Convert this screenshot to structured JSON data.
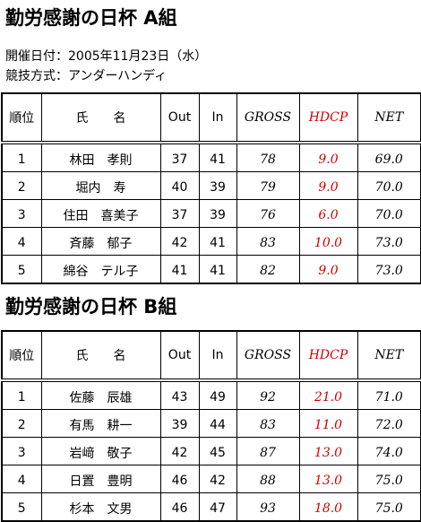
{
  "sections": [
    {
      "title": "勤労感謝の日杯 A組",
      "info": [
        "開催日付：2005年11月23日（水）",
        "競技方式：アンダーハンディ"
      ],
      "table": {
        "header": [
          "順位",
          "氏　　名",
          "Out",
          "In",
          "GROSS",
          "HDCP",
          "NET"
        ],
        "rows": [
          [
            "1",
            "林田　孝則",
            "37",
            "41",
            "78",
            "9.0",
            "69.0"
          ],
          [
            "2",
            "堀内　寿",
            "40",
            "39",
            "79",
            "9.0",
            "70.0"
          ],
          [
            "3",
            "住田　喜美子",
            "37",
            "39",
            "76",
            "6.0",
            "70.0"
          ],
          [
            "4",
            "斉藤　郁子",
            "42",
            "41",
            "83",
            "10.0",
            "73.0"
          ],
          [
            "5",
            "綿谷　テル子",
            "41",
            "41",
            "82",
            "9.0",
            "73.0"
          ]
        ]
      }
    },
    {
      "title": "勤労感謝の日杯 B組",
      "info": [],
      "table": {
        "header": [
          "順位",
          "氏　　名",
          "Out",
          "In",
          "GROSS",
          "HDCP",
          "NET"
        ],
        "rows": [
          [
            "1",
            "佐藤　辰雄",
            "43",
            "49",
            "92",
            "21.0",
            "71.0"
          ],
          [
            "2",
            "有馬　耕一",
            "39",
            "44",
            "83",
            "11.0",
            "72.0"
          ],
          [
            "3",
            "岩﨑　敬子",
            "42",
            "45",
            "87",
            "13.0",
            "74.0"
          ],
          [
            "4",
            "日置　豊明",
            "46",
            "42",
            "88",
            "13.0",
            "75.0"
          ],
          [
            "5",
            "杉本　文男",
            "46",
            "47",
            "93",
            "18.0",
            "75.0"
          ]
        ]
      }
    }
  ]
}
